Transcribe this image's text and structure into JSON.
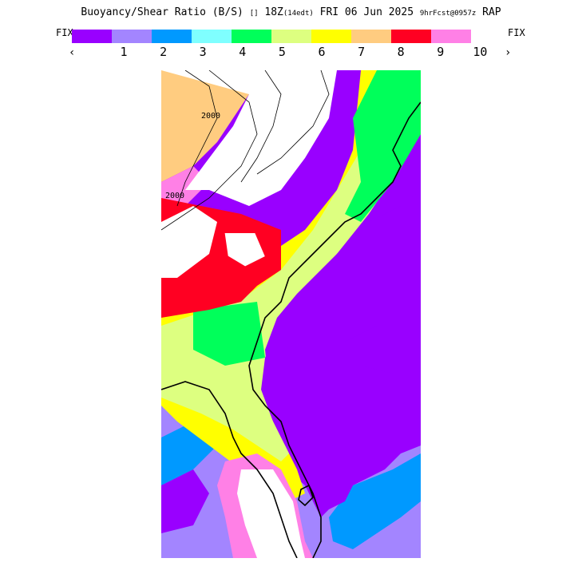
{
  "title": {
    "main": "Buoyancy/Shear Ratio (B/S)",
    "valid_prefix": "[]",
    "valid": "18Z",
    "local_time": "(14edt)",
    "date": "FRI 06 Jun 2025",
    "forecast": "9hrFcst@0957z",
    "model": "RAP"
  },
  "legend": {
    "fix_left": "FIX",
    "fix_right": "FIX",
    "left_arrow": "‹",
    "right_arrow": "›",
    "colors": [
      "#9900ff",
      "#a385ff",
      "#0099ff",
      "#7fffff",
      "#00ff5a",
      "#ddff80",
      "#ffff00",
      "#ffcc80",
      "#ff0022",
      "#ff80e6"
    ],
    "ticks": [
      "1",
      "2",
      "3",
      "4",
      "5",
      "6",
      "7",
      "8",
      "9",
      "10"
    ]
  },
  "map": {
    "contour_labels": [
      "2000",
      "2000"
    ],
    "colors": {
      "purple": "#9900ff",
      "lavender": "#a385ff",
      "blue": "#0099ff",
      "cyan": "#7fffff",
      "green": "#00ff5a",
      "lightgreen": "#ddff80",
      "yellow": "#ffff00",
      "orange": "#ffcc80",
      "red": "#ff0022",
      "pink": "#ff80e6",
      "white": "#ffffff"
    }
  }
}
